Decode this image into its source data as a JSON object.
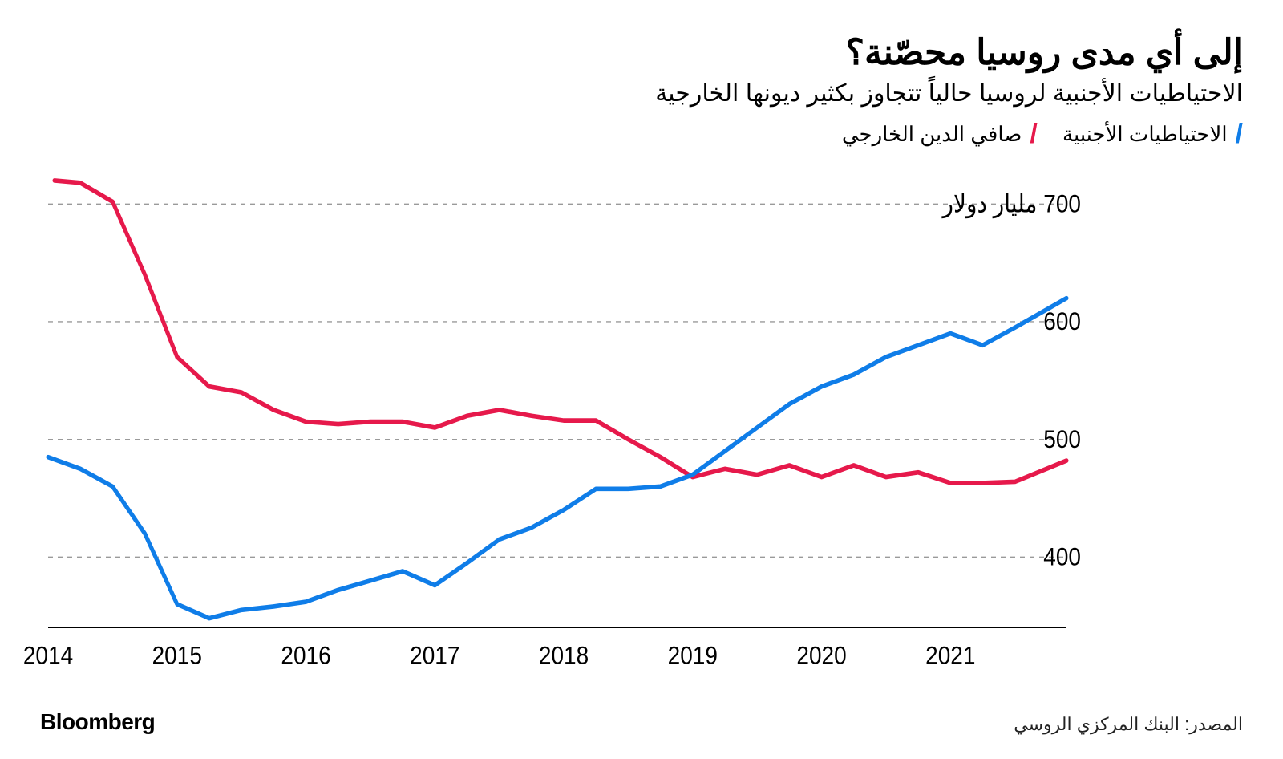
{
  "title": "إلى أي مدى روسيا محصّنة؟",
  "subtitle": "الاحتياطيات الأجنبية لروسيا حالياً تتجاوز بكثير ديونها الخارجية",
  "legend": {
    "series_a": {
      "label": "الاحتياطيات الأجنبية",
      "color": "#0f7de8"
    },
    "series_b": {
      "label": "صافي الدين الخارجي",
      "color": "#e6194b"
    }
  },
  "brand": "Bloomberg",
  "source": "المصدر: البنك المركزي الروسي",
  "chart": {
    "type": "line",
    "background_color": "#ffffff",
    "grid_color": "#9a9a9a",
    "grid_dash": "6 6",
    "axis_font_size": 28,
    "y_unit_suffix": " مليار دولار",
    "xlim": [
      2014,
      2021.9
    ],
    "ylim": [
      340,
      725
    ],
    "yticks": [
      400,
      500,
      600,
      700
    ],
    "ytick_with_unit": 700,
    "xticks": [
      2014,
      2015,
      2016,
      2017,
      2018,
      2019,
      2020,
      2021
    ],
    "line_width": 5,
    "series_a": {
      "color": "#0f7de8",
      "x": [
        2014.0,
        2014.25,
        2014.5,
        2014.75,
        2015.0,
        2015.25,
        2015.5,
        2015.75,
        2016.0,
        2016.25,
        2016.5,
        2016.75,
        2017.0,
        2017.25,
        2017.5,
        2017.75,
        2018.0,
        2018.25,
        2018.5,
        2018.75,
        2019.0,
        2019.25,
        2019.5,
        2019.75,
        2020.0,
        2020.25,
        2020.5,
        2020.75,
        2021.0,
        2021.25,
        2021.5,
        2021.9
      ],
      "y": [
        485,
        475,
        460,
        420,
        360,
        348,
        355,
        358,
        362,
        372,
        380,
        388,
        376,
        395,
        415,
        425,
        440,
        458,
        458,
        460,
        470,
        490,
        510,
        530,
        545,
        555,
        570,
        580,
        590,
        580,
        595,
        620
      ]
    },
    "series_b": {
      "color": "#e6194b",
      "x": [
        2014.05,
        2014.25,
        2014.5,
        2014.75,
        2015.0,
        2015.25,
        2015.5,
        2015.75,
        2016.0,
        2016.25,
        2016.5,
        2016.75,
        2017.0,
        2017.25,
        2017.5,
        2017.75,
        2018.0,
        2018.25,
        2018.5,
        2018.75,
        2019.0,
        2019.25,
        2019.5,
        2019.75,
        2020.0,
        2020.25,
        2020.5,
        2020.75,
        2021.0,
        2021.25,
        2021.5,
        2021.9
      ],
      "y": [
        720,
        718,
        702,
        640,
        570,
        545,
        540,
        525,
        515,
        513,
        515,
        515,
        510,
        520,
        525,
        520,
        516,
        516,
        500,
        485,
        468,
        475,
        470,
        478,
        468,
        478,
        468,
        472,
        463,
        463,
        464,
        482
      ]
    }
  }
}
